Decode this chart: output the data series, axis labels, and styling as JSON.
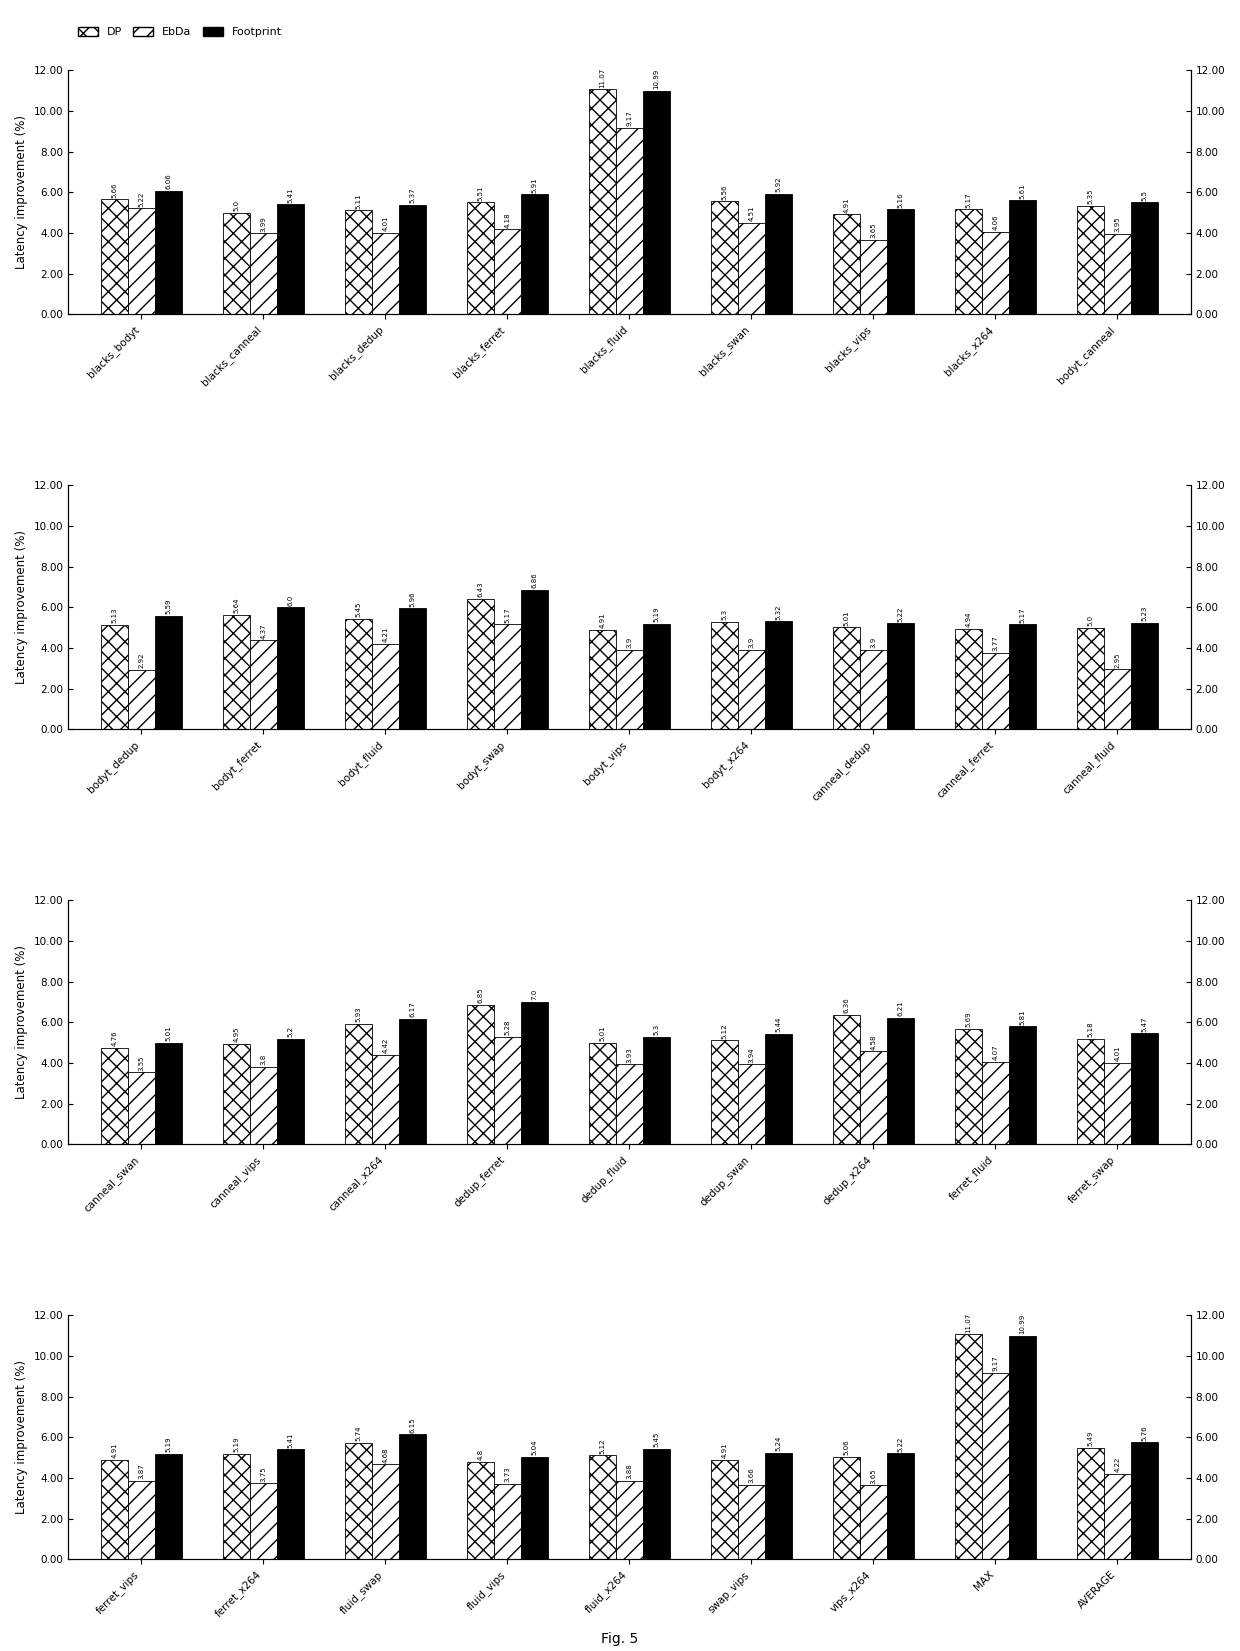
{
  "subplots": [
    {
      "categories": [
        "blacks_bodyt",
        "blacks_canneal",
        "blacks_dedup",
        "blacks_ferret",
        "blacks_fluid",
        "blacks_swan",
        "blacks_vips",
        "blacks_x264",
        "bodyt_canneal"
      ],
      "DP": [
        5.66,
        5.0,
        5.11,
        5.51,
        11.07,
        5.56,
        4.91,
        5.17,
        5.35
      ],
      "EbDa": [
        5.22,
        3.99,
        4.01,
        4.18,
        9.17,
        4.51,
        3.65,
        4.06,
        3.95
      ],
      "Footprint": [
        6.06,
        5.41,
        5.37,
        5.91,
        10.99,
        5.92,
        5.16,
        5.61,
        5.5
      ]
    },
    {
      "categories": [
        "bodyt_dedup",
        "bodyt_ferret",
        "bodyt_fluid",
        "bodyt_swap",
        "bodyt_vips",
        "bodyt_x264",
        "canneal_dedup",
        "canneal_ferret",
        "canneal_fluid"
      ],
      "DP": [
        5.13,
        5.64,
        5.45,
        6.43,
        4.91,
        5.3,
        5.01,
        4.94,
        5.0
      ],
      "EbDa": [
        2.92,
        4.37,
        4.21,
        5.17,
        3.9,
        3.9,
        3.9,
        3.77,
        2.95
      ],
      "Footprint": [
        5.59,
        6.0,
        5.96,
        6.86,
        5.19,
        5.32,
        5.22,
        5.17,
        5.23
      ]
    },
    {
      "categories": [
        "canneal_swan",
        "canneal_vips",
        "canneal_x264",
        "dedup_ferret",
        "dedup_fluid",
        "dedup_swan",
        "dedup_x264",
        "ferret_fluid",
        "ferret_swap"
      ],
      "DP": [
        4.76,
        4.95,
        5.93,
        6.85,
        5.01,
        5.12,
        6.36,
        5.69,
        5.18
      ],
      "EbDa": [
        3.55,
        3.8,
        4.42,
        5.28,
        3.93,
        3.94,
        4.58,
        4.07,
        4.01
      ],
      "Footprint": [
        5.01,
        5.2,
        6.17,
        7.0,
        5.3,
        5.44,
        6.21,
        5.81,
        5.47
      ]
    },
    {
      "categories": [
        "ferret_vips",
        "ferret_x264",
        "fluid_swap",
        "fluid_vips",
        "fluid_x264",
        "swap_vips",
        "vips_x264",
        "MAX",
        "AVERAGE"
      ],
      "DP": [
        4.91,
        5.19,
        5.74,
        4.8,
        5.12,
        4.91,
        5.06,
        11.07,
        5.49
      ],
      "EbDa": [
        3.87,
        3.75,
        4.68,
        3.73,
        3.88,
        3.66,
        3.65,
        9.17,
        4.22
      ],
      "Footprint": [
        5.19,
        5.41,
        6.15,
        5.04,
        5.45,
        5.24,
        5.22,
        10.99,
        5.76
      ]
    }
  ],
  "ylabel": "Latency improvement (%)",
  "ylim": [
    0,
    12.0
  ],
  "yticks": [
    0.0,
    2.0,
    4.0,
    6.0,
    8.0,
    10.0,
    12.0
  ],
  "bar_width": 0.22,
  "footprint_color": "#000000",
  "dp_color": "#d0d0d0",
  "ebda_color": "#a0a0a0",
  "figure_caption": "Fig. 5",
  "label_fontsize": 5.0,
  "tick_fontsize": 7.5,
  "axis_label_fontsize": 8.5
}
